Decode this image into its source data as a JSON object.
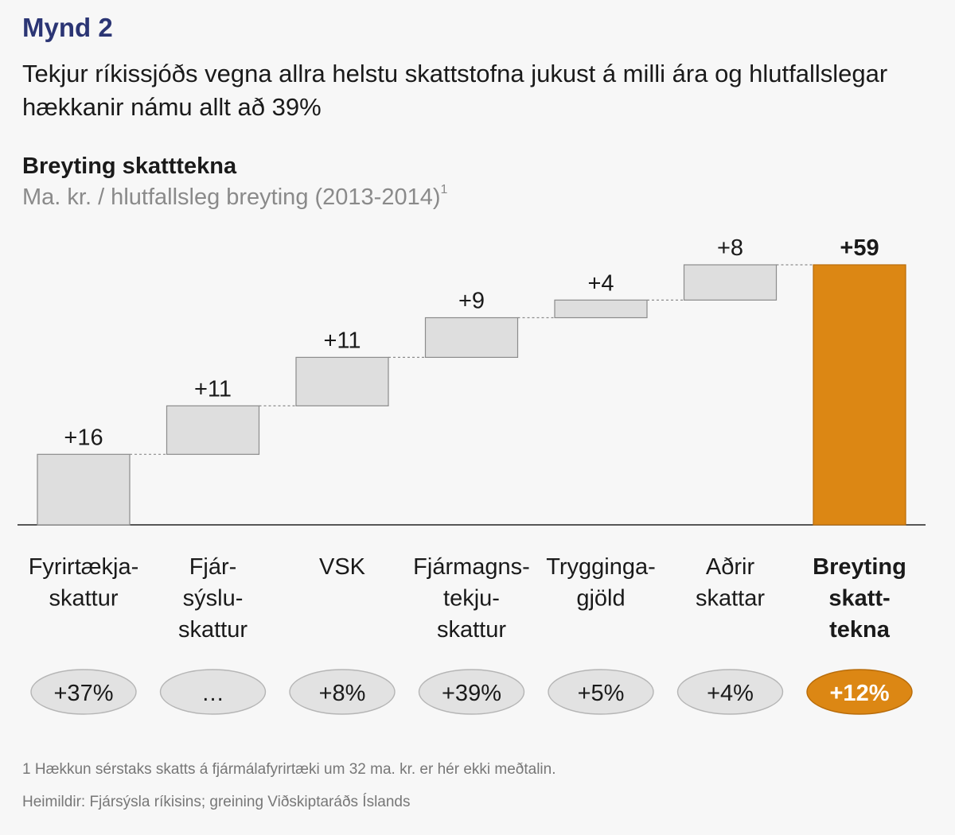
{
  "figure_label": "Mynd 2",
  "headline": "Tekjur ríkissjóðs vegna allra helstu skattstofna jukust á milli ára og hlutfallslegar hækkanir námu allt að 39%",
  "footnotes": {
    "note": "1 Hækkun sérstaks skatts á fjármálafyrirtæki um 32 ma. kr. er hér ekki meðtalin.",
    "source": "Heimildir: Fjársýsla ríkisins; greining Viðskiptaráðs Íslands"
  },
  "chart_data": {
    "type": "bar",
    "subtype": "waterfall",
    "title": "Breyting skatttekna",
    "subtitle": "Ma. kr. / hlutfallsleg breyting (2013-2014)",
    "subtitle_footnote_mark": "1",
    "ylim": [
      0,
      59
    ],
    "grid": false,
    "colors": {
      "step": "#dedede",
      "step_border": "#8c8c8c",
      "total": "#dc8714",
      "total_border": "#b86c0a",
      "oval": "#e2e2e2",
      "oval_border": "#b5b5b5"
    },
    "categories": [
      [
        "Fyrirtækja-",
        "skattur"
      ],
      [
        "Fjár-",
        "sýslu-",
        "skattur"
      ],
      [
        "VSK"
      ],
      [
        "Fjármagns-",
        "tekju-",
        "skattur"
      ],
      [
        "Tryggingа-",
        "gjöld"
      ],
      [
        "Aðrir",
        "skattar"
      ],
      [
        "Breyting",
        "skatt-",
        "tekna"
      ]
    ],
    "values": [
      16,
      11,
      11,
      9,
      4,
      8,
      59
    ],
    "value_labels": [
      "+16",
      "+11",
      "+11",
      "+9",
      "+4",
      "+8",
      "+59"
    ],
    "is_total": [
      false,
      false,
      false,
      false,
      false,
      false,
      true
    ],
    "percent_labels": [
      "+37%",
      "…",
      "+8%",
      "+39%",
      "+5%",
      "+4%",
      "+12%"
    ]
  }
}
